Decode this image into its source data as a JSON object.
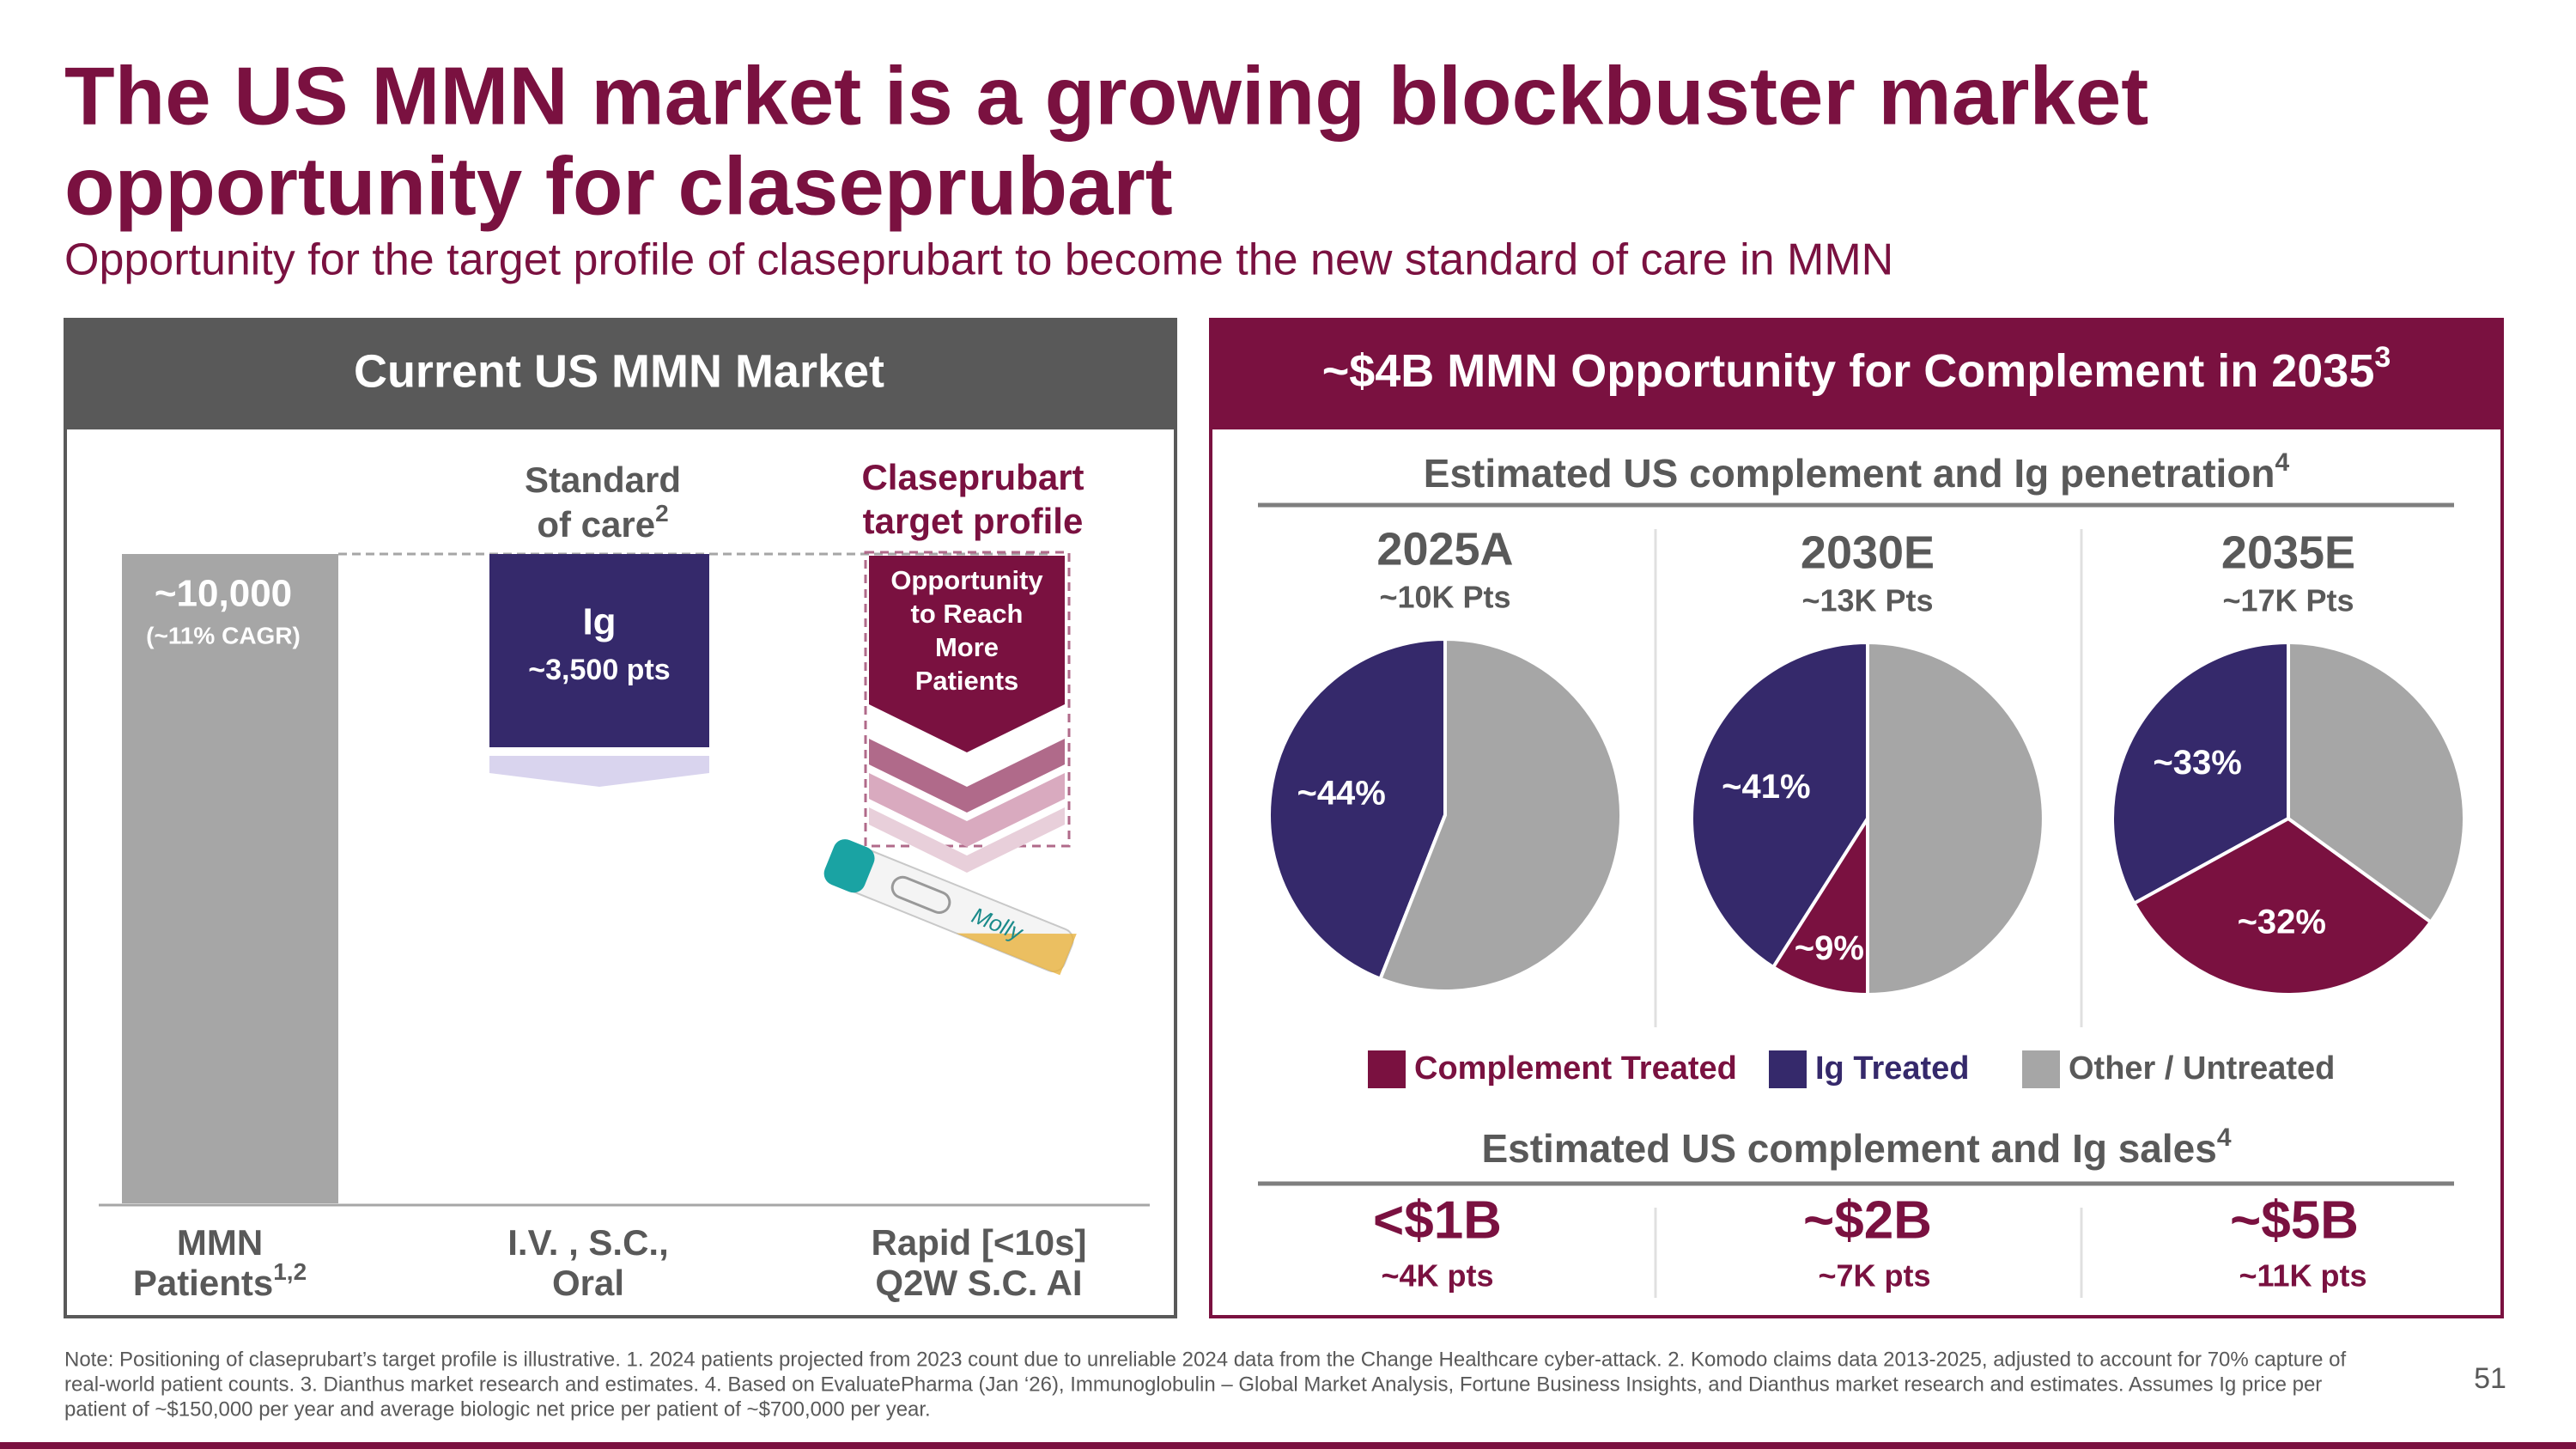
{
  "title": [
    "The US MMN market is a growing blockbuster market",
    "opportunity for claseprubart"
  ],
  "subtitle": "Opportunity for the target profile of claseprubart to become the new standard of care in MMN",
  "left_panel": {
    "header": "Current US MMN Market",
    "patients": {
      "value": "~10,000",
      "note": "(~11% CAGR)"
    },
    "standard_of_care": {
      "lines": [
        "Standard",
        "of care"
      ],
      "sup": "2"
    },
    "ig_box": {
      "label": "Ig",
      "value": "~3,500 pts"
    },
    "target_profile": [
      "Claseprubart",
      "target profile"
    ],
    "opportunity": [
      "Opportunity",
      "to Reach",
      "More",
      "Patients"
    ],
    "device_label": "Molly",
    "columns": [
      {
        "lines": [
          "MMN",
          "Patients"
        ],
        "sup": "1,2"
      },
      {
        "lines": [
          "I.V. , S.C.,",
          "Oral"
        ]
      },
      {
        "lines": [
          "Rapid [<10s]",
          "Q2W S.C. AI"
        ]
      }
    ]
  },
  "right_panel": {
    "header": "~$4B MMN Opportunity for Complement in 2035",
    "header_sup": "3",
    "penetration_title": "Estimated US complement and Ig penetration",
    "penetration_sup": "4",
    "sales_title": "Estimated US complement and Ig sales",
    "sales_sup": "4",
    "sales": [
      {
        "value": "<$1B",
        "patients": "~4K pts"
      },
      {
        "value": "~$2B",
        "patients": "~7K pts"
      },
      {
        "value": "~$5B",
        "patients": "~11K pts"
      }
    ]
  },
  "chart_data": {
    "type": "pie",
    "categories": [
      "Complement Treated",
      "Ig Treated",
      "Other / Untreated"
    ],
    "colors": [
      "#7a1140",
      "#35296b",
      "#a6a6a6"
    ],
    "series": [
      {
        "name": "2025A",
        "subtitle": "~10K Pts",
        "values": [
          0,
          44,
          56
        ],
        "value_labels": [
          null,
          "~44%",
          null
        ]
      },
      {
        "name": "2030E",
        "subtitle": "~13K Pts",
        "values": [
          9,
          41,
          50
        ],
        "value_labels": [
          "~9%",
          "~41%",
          null
        ]
      },
      {
        "name": "2035E",
        "subtitle": "~17K Pts",
        "values": [
          32,
          33,
          35
        ],
        "value_labels": [
          "~32%",
          "~33%",
          null
        ]
      }
    ]
  },
  "footnote": [
    "Note: Positioning of claseprubart’s target profile is illustrative. 1. 2024 patients projected from 2023 count due to unreliable 2024 data from the Change Healthcare cyber-attack. 2. Komodo claims data 2013-2025, adjusted to account for 70% capture of",
    "real-world patient counts. 3. Dianthus market research and estimates. 4. Based on EvaluatePharma (Jan ‘26), Immunoglobulin – Global Market Analysis, Fortune Business Insights, and Dianthus market research and estimates. Assumes Ig price per",
    "patient of ~$150,000 per year and average biologic net price per patient of ~$700,000 per year."
  ],
  "page_number": "51"
}
